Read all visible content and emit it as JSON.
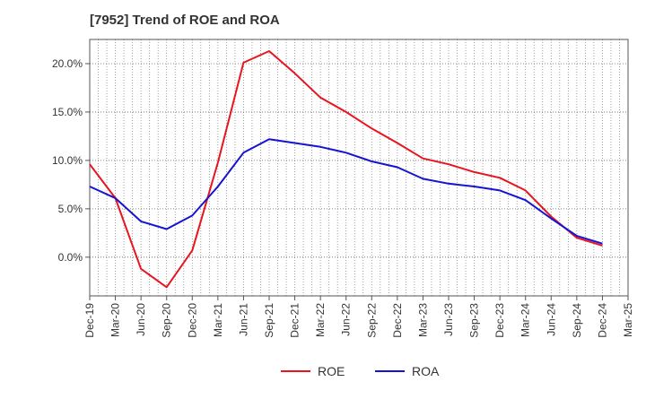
{
  "chart_data": {
    "type": "line",
    "title": "[7952]  Trend of ROE and ROA",
    "xlabel": "",
    "ylabel": "",
    "categories": [
      "Dec-19",
      "Mar-20",
      "Jun-20",
      "Sep-20",
      "Dec-20",
      "Mar-21",
      "Jun-21",
      "Sep-21",
      "Dec-21",
      "Mar-22",
      "Jun-22",
      "Sep-22",
      "Dec-22",
      "Mar-23",
      "Jun-23",
      "Sep-23",
      "Dec-23",
      "Mar-24",
      "Jun-24",
      "Sep-24",
      "Dec-24",
      "Mar-25"
    ],
    "y_ticks": [
      {
        "value": 0,
        "label": "0.0%"
      },
      {
        "value": 5,
        "label": "5.0%"
      },
      {
        "value": 10,
        "label": "10.0%"
      },
      {
        "value": 15,
        "label": "15.0%"
      },
      {
        "value": 20,
        "label": "20.0%"
      }
    ],
    "ylim": [
      -4,
      22.5
    ],
    "grid": true,
    "legend_position": "bottom-center",
    "series": [
      {
        "name": "ROE",
        "color": "#e8141e",
        "values": [
          9.6,
          6.1,
          -1.2,
          -3.1,
          0.7,
          9.8,
          20.1,
          21.3,
          19.0,
          16.5,
          15.0,
          13.3,
          11.8,
          10.2,
          9.6,
          8.8,
          8.2,
          6.9,
          4.2,
          2.0,
          1.2,
          null
        ]
      },
      {
        "name": "ROA",
        "color": "#1414d2",
        "values": [
          7.3,
          6.1,
          3.7,
          2.9,
          4.3,
          7.3,
          10.8,
          12.2,
          11.8,
          11.4,
          10.8,
          9.9,
          9.3,
          8.1,
          7.6,
          7.3,
          6.9,
          5.9,
          4.0,
          2.2,
          1.4,
          null
        ]
      }
    ]
  }
}
